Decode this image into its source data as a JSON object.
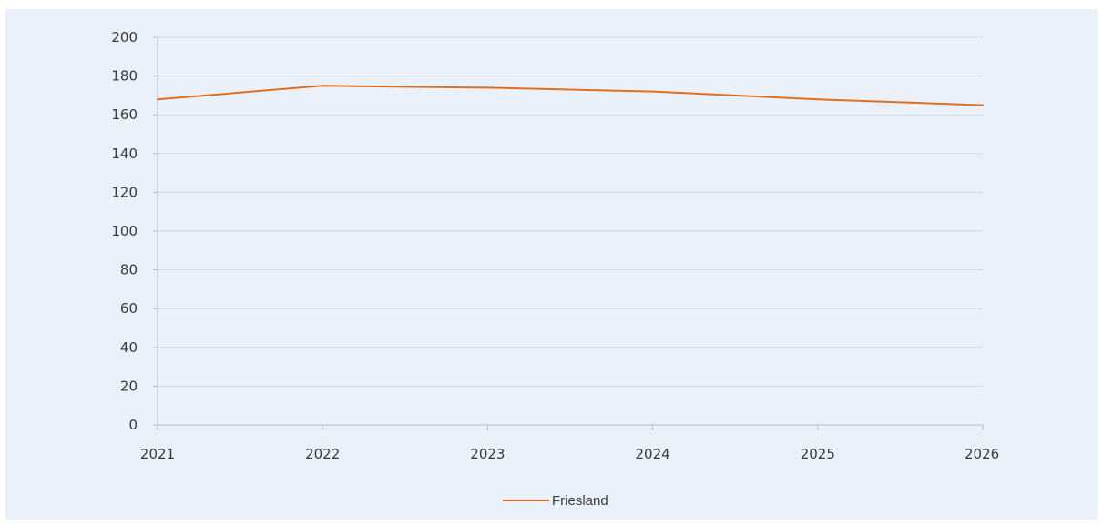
{
  "chart_data": {
    "type": "line",
    "title": "",
    "xlabel": "",
    "ylabel": "",
    "x": [
      2021,
      2022,
      2023,
      2024,
      2025,
      2026
    ],
    "x_tick_labels": [
      "2021",
      "2022",
      "2023",
      "2024",
      "2025",
      "2026"
    ],
    "ylim": [
      0,
      200
    ],
    "y_ticks": [
      0,
      20,
      40,
      60,
      80,
      100,
      120,
      140,
      160,
      180,
      200
    ],
    "grid": true,
    "legend": "bottom-center",
    "series": [
      {
        "name": "Friesland",
        "color": "#e07020",
        "values": [
          168,
          175,
          174,
          172,
          168,
          165
        ]
      }
    ],
    "background_color": "#eaf1fb"
  }
}
